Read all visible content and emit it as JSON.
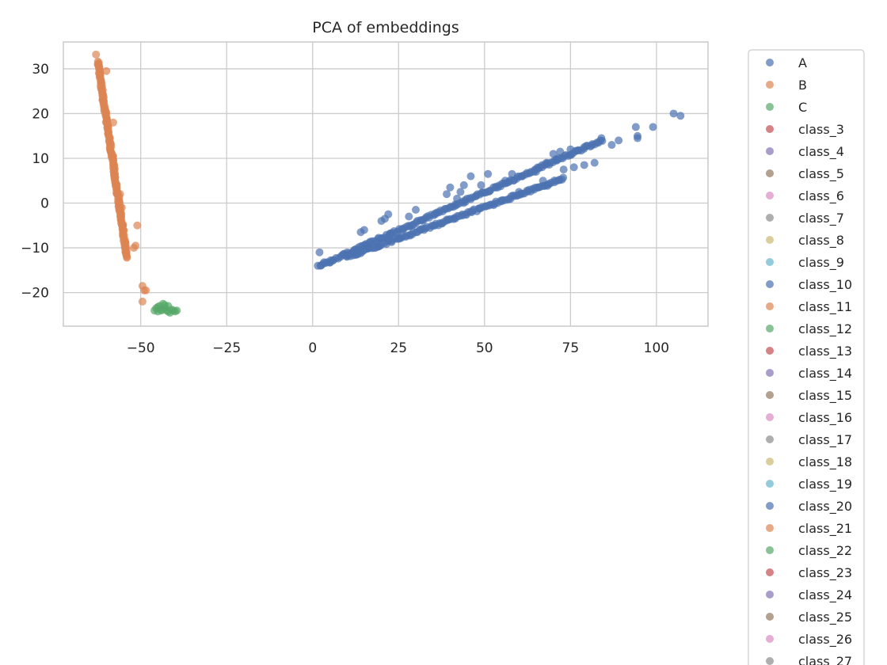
{
  "chart_data": {
    "type": "scatter",
    "title": "PCA of embeddings",
    "xlabel": "",
    "ylabel": "",
    "xlim": [
      -72.5,
      115
    ],
    "ylim": [
      -27.5,
      36
    ],
    "x_ticks": [
      -50,
      -25,
      0,
      25,
      50,
      75,
      100
    ],
    "y_ticks": [
      -20,
      -10,
      0,
      10,
      20,
      30
    ],
    "x_tick_labels": [
      "−50",
      "−25",
      "0",
      "25",
      "50",
      "75",
      "100"
    ],
    "y_tick_labels": [
      "−20",
      "−10",
      "0",
      "10",
      "20",
      "30"
    ],
    "grid": true,
    "legend_position": "outside-right",
    "series": [
      {
        "name": "A",
        "color": "#4c72b0",
        "points": [
          [
            1.5,
            -14
          ],
          [
            2,
            -11
          ],
          [
            5,
            -13.3
          ],
          [
            10,
            -12
          ],
          [
            14,
            -6.5
          ],
          [
            15,
            -6
          ],
          [
            20,
            -4
          ],
          [
            21,
            -3.5
          ],
          [
            22,
            -2.5
          ],
          [
            28,
            -3
          ],
          [
            30,
            -1.5
          ],
          [
            39,
            2
          ],
          [
            40,
            3.5
          ],
          [
            42,
            1
          ],
          [
            43,
            2.5
          ],
          [
            44,
            4
          ],
          [
            46,
            6
          ],
          [
            49,
            4
          ],
          [
            51,
            6.5
          ],
          [
            56,
            5
          ],
          [
            58,
            6.5
          ],
          [
            60,
            2.5
          ],
          [
            63,
            3
          ],
          [
            65,
            7
          ],
          [
            66,
            8
          ],
          [
            67,
            5
          ],
          [
            68,
            9
          ],
          [
            70,
            11
          ],
          [
            71,
            9.5
          ],
          [
            72,
            11.5
          ],
          [
            73,
            7.5
          ],
          [
            75,
            12
          ],
          [
            76,
            8
          ],
          [
            79,
            8.5
          ],
          [
            82,
            9
          ],
          [
            84,
            14.5
          ],
          [
            87,
            13
          ],
          [
            89,
            14
          ],
          [
            94,
            17
          ],
          [
            94.5,
            15
          ],
          [
            94.5,
            14.5
          ],
          [
            99,
            17
          ],
          [
            105,
            20
          ],
          [
            107,
            19.5
          ]
        ],
        "bands": [
          {
            "from": [
              2,
              -14
            ],
            "to": [
              84,
              14
            ],
            "n": 170,
            "jitter": 0.6
          },
          {
            "from": [
              10,
              -12
            ],
            "to": [
              73,
              5.5
            ],
            "n": 130,
            "jitter": 0.6
          }
        ]
      },
      {
        "name": "B",
        "color": "#dd8452",
        "points": [
          [
            -63,
            33.2
          ],
          [
            -62.5,
            31
          ],
          [
            -60,
            29.5
          ],
          [
            -58,
            18
          ],
          [
            -58,
            10.5
          ],
          [
            -57,
            4
          ],
          [
            -56,
            2
          ],
          [
            -55.5,
            -1
          ],
          [
            -54,
            -12
          ],
          [
            -51,
            -5
          ],
          [
            -51.5,
            -9.5
          ],
          [
            -52,
            -10
          ],
          [
            -49.5,
            -18.5
          ],
          [
            -49,
            -19.5
          ],
          [
            -49.5,
            -22
          ],
          [
            -48.5,
            -19.5
          ]
        ],
        "bands": [
          {
            "from": [
              -62.5,
              31.5
            ],
            "to": [
              -54,
              -12
            ],
            "n": 200,
            "jitter": 0.5
          }
        ]
      },
      {
        "name": "C",
        "color": "#55a868",
        "points": [
          [
            -46,
            -24
          ],
          [
            -45.5,
            -23.5
          ],
          [
            -45,
            -24.2
          ],
          [
            -44.5,
            -23
          ],
          [
            -44,
            -24
          ],
          [
            -43.5,
            -22.5
          ],
          [
            -43,
            -23.5
          ],
          [
            -42.5,
            -24
          ],
          [
            -42,
            -23
          ],
          [
            -41.5,
            -24.5
          ],
          [
            -41,
            -23.8
          ],
          [
            -40.5,
            -24
          ],
          [
            -40,
            -24.2
          ],
          [
            -39.5,
            -24
          ],
          [
            -43,
            -22.8
          ],
          [
            -44,
            -23.8
          ],
          [
            -45,
            -23.2
          ],
          [
            -42,
            -24.2
          ]
        ],
        "bands": []
      }
    ],
    "legend": [
      {
        "label": "A",
        "color": "#4c72b0"
      },
      {
        "label": "B",
        "color": "#dd8452"
      },
      {
        "label": "C",
        "color": "#55a868"
      },
      {
        "label": "class_3",
        "color": "#c44e52"
      },
      {
        "label": "class_4",
        "color": "#8172b3"
      },
      {
        "label": "class_5",
        "color": "#937860"
      },
      {
        "label": "class_6",
        "color": "#da8bc3"
      },
      {
        "label": "class_7",
        "color": "#8c8c8c"
      },
      {
        "label": "class_8",
        "color": "#ccb974"
      },
      {
        "label": "class_9",
        "color": "#64b5cd"
      },
      {
        "label": "class_10",
        "color": "#4c72b0"
      },
      {
        "label": "class_11",
        "color": "#dd8452"
      },
      {
        "label": "class_12",
        "color": "#55a868"
      },
      {
        "label": "class_13",
        "color": "#c44e52"
      },
      {
        "label": "class_14",
        "color": "#8172b3"
      },
      {
        "label": "class_15",
        "color": "#937860"
      },
      {
        "label": "class_16",
        "color": "#da8bc3"
      },
      {
        "label": "class_17",
        "color": "#8c8c8c"
      },
      {
        "label": "class_18",
        "color": "#ccb974"
      },
      {
        "label": "class_19",
        "color": "#64b5cd"
      },
      {
        "label": "class_20",
        "color": "#4c72b0"
      },
      {
        "label": "class_21",
        "color": "#dd8452"
      },
      {
        "label": "class_22",
        "color": "#55a868"
      },
      {
        "label": "class_23",
        "color": "#c44e52"
      },
      {
        "label": "class_24",
        "color": "#8172b3"
      },
      {
        "label": "class_25",
        "color": "#937860"
      },
      {
        "label": "class_26",
        "color": "#da8bc3"
      },
      {
        "label": "class_27",
        "color": "#8c8c8c"
      }
    ]
  }
}
